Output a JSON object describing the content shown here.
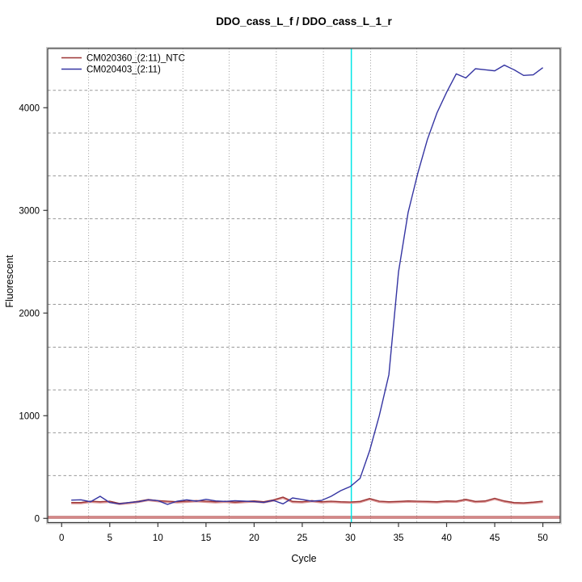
{
  "chart_data": {
    "type": "line",
    "title": "DDO_cass_L_f / DDO_cass_L_1_r",
    "xlabel": "Cycle",
    "ylabel": "Fluorescent",
    "x_ticks": [
      0,
      5,
      10,
      15,
      20,
      25,
      30,
      35,
      40,
      45,
      50
    ],
    "y_ticks": [
      0,
      1000,
      2000,
      3000,
      4000
    ],
    "xlim": [
      -1.45,
      51.8
    ],
    "ylim": [
      -41,
      4577
    ],
    "grid": {
      "show": true,
      "color": "#999999",
      "x_positions": [
        2.8,
        7.7,
        12.6,
        17.4,
        22.3,
        27.2,
        32.1,
        36.9,
        41.8,
        46.7
      ],
      "y_positions": [
        417,
        834,
        1251,
        1668,
        2085,
        2502,
        2919,
        3336,
        3753,
        4170
      ]
    },
    "x": [
      1,
      2,
      3,
      4,
      5,
      6,
      7,
      8,
      9,
      10,
      11,
      12,
      13,
      14,
      15,
      16,
      17,
      18,
      19,
      20,
      21,
      22,
      23,
      24,
      25,
      26,
      27,
      28,
      29,
      30,
      31,
      32,
      33,
      34,
      35,
      36,
      37,
      38,
      39,
      40,
      41,
      42,
      43,
      44,
      45,
      46,
      47,
      48,
      49,
      50
    ],
    "series": [
      {
        "name": "CM020360_(2:11)_NTC",
        "color": "#9c3434",
        "halo_color": "#d89090",
        "values": [
          154,
          154,
          168,
          162,
          168,
          146,
          154,
          168,
          184,
          173,
          168,
          162,
          168,
          173,
          168,
          162,
          168,
          158,
          165,
          170,
          162,
          180,
          207,
          165,
          162,
          173,
          162,
          168,
          162,
          160,
          165,
          194,
          168,
          162,
          165,
          170,
          168,
          165,
          162,
          170,
          168,
          186,
          165,
          170,
          196,
          170,
          154,
          152,
          158,
          168
        ]
      },
      {
        "name": "CM020403_(2:11)",
        "color": "#3535a2",
        "values": [
          178,
          181,
          162,
          215,
          154,
          142,
          154,
          162,
          181,
          173,
          136,
          168,
          181,
          168,
          186,
          170,
          165,
          172,
          168,
          163,
          155,
          175,
          142,
          199,
          184,
          168,
          175,
          215,
          270,
          310,
          390,
          660,
          1000,
          1400,
          2400,
          2980,
          3360,
          3690,
          3950,
          4150,
          4330,
          4290,
          4380,
          4370,
          4360,
          4415,
          4370,
          4315,
          4320,
          4390
        ]
      }
    ],
    "threshold_line": {
      "value": 10,
      "color": "#b25252",
      "core_color": "#e8a8a8"
    },
    "ct_line": {
      "x": 30.1,
      "color": "#00e6e6"
    },
    "legend_position": "top-left",
    "axis_color": "#3a3a3a",
    "box_shadow_color": "#cccccc"
  },
  "legend": {
    "items": [
      {
        "label": "CM020360_(2:11)_NTC"
      },
      {
        "label": "CM020403_(2:11)"
      }
    ]
  }
}
